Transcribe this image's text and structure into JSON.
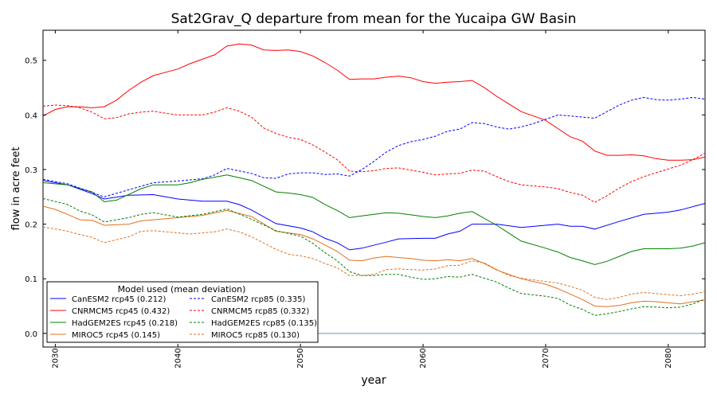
{
  "chart_data": {
    "type": "line",
    "title": "Sat2Grav_Q departure from mean for the Yucaipa GW Basin",
    "xlabel": "year",
    "ylabel": "flow in acre feet",
    "xlim": [
      2029,
      2083
    ],
    "ylim": [
      -0.025,
      0.555
    ],
    "xticks": [
      2030,
      2040,
      2050,
      2060,
      2070,
      2080
    ],
    "yticks": [
      0.0,
      0.1,
      0.2,
      0.3,
      0.4,
      0.5
    ],
    "ytick_labels": [
      "0.0",
      "0.1",
      "0.2",
      "0.3",
      "0.4",
      "0.5"
    ],
    "zero_line": {
      "y": 0,
      "color": "#5f9ea0"
    },
    "grid": false,
    "legend": {
      "title": "Model used (mean deviation)",
      "placement": "lower-left",
      "columns": 2
    },
    "series": [
      {
        "name": "CanESM2 rcp45 (0.212)",
        "color": "#0000ff",
        "style": "solid",
        "x": [
          2029,
          2031,
          2033,
          2034,
          2036,
          2038,
          2040,
          2042,
          2044,
          2045,
          2046,
          2048,
          2050,
          2051,
          2052,
          2053,
          2054,
          2055,
          2057,
          2058,
          2060,
          2061,
          2062,
          2063,
          2064,
          2066,
          2068,
          2070,
          2071,
          2072,
          2073,
          2074,
          2076,
          2078,
          2080,
          2081,
          2083
        ],
        "values": [
          0.28,
          0.272,
          0.256,
          0.246,
          0.253,
          0.254,
          0.246,
          0.242,
          0.242,
          0.236,
          0.226,
          0.201,
          0.193,
          0.186,
          0.174,
          0.166,
          0.153,
          0.156,
          0.167,
          0.173,
          0.174,
          0.174,
          0.182,
          0.187,
          0.2,
          0.2,
          0.194,
          0.198,
          0.2,
          0.196,
          0.196,
          0.191,
          0.205,
          0.218,
          0.222,
          0.226,
          0.238
        ]
      },
      {
        "name": "CNRMCM5 rcp45 (0.432)",
        "color": "#ff0000",
        "style": "solid",
        "x": [
          2029,
          2030,
          2031,
          2032,
          2033,
          2034,
          2035,
          2036,
          2037,
          2038,
          2039,
          2040,
          2041,
          2042,
          2043,
          2044,
          2045,
          2046,
          2047,
          2048,
          2049,
          2050,
          2051,
          2052,
          2053,
          2054,
          2055,
          2056,
          2057,
          2058,
          2059,
          2060,
          2061,
          2062,
          2063,
          2064,
          2065,
          2066,
          2068,
          2070,
          2071,
          2072,
          2073,
          2074,
          2075,
          2076,
          2077,
          2078,
          2079,
          2080,
          2081,
          2082,
          2083
        ],
        "values": [
          0.398,
          0.41,
          0.415,
          0.415,
          0.413,
          0.415,
          0.427,
          0.445,
          0.46,
          0.472,
          0.478,
          0.484,
          0.494,
          0.502,
          0.51,
          0.526,
          0.53,
          0.528,
          0.519,
          0.518,
          0.519,
          0.516,
          0.508,
          0.496,
          0.482,
          0.465,
          0.466,
          0.466,
          0.469,
          0.471,
          0.468,
          0.461,
          0.458,
          0.46,
          0.461,
          0.463,
          0.45,
          0.434,
          0.406,
          0.39,
          0.375,
          0.36,
          0.352,
          0.334,
          0.326,
          0.326,
          0.327,
          0.325,
          0.32,
          0.317,
          0.317,
          0.318,
          0.323
        ]
      },
      {
        "name": "HadGEM2ES rcp45 (0.218)",
        "color": "#008000",
        "style": "solid",
        "x": [
          2029,
          2031,
          2033,
          2034,
          2035,
          2037,
          2038,
          2040,
          2041,
          2042,
          2043,
          2044,
          2046,
          2048,
          2049,
          2050,
          2051,
          2052,
          2053,
          2054,
          2055,
          2056,
          2057,
          2058,
          2059,
          2060,
          2061,
          2062,
          2063,
          2064,
          2066,
          2068,
          2070,
          2071,
          2072,
          2073,
          2074,
          2075,
          2076,
          2077,
          2078,
          2079,
          2080,
          2081,
          2082,
          2083
        ],
        "values": [
          0.276,
          0.272,
          0.259,
          0.241,
          0.244,
          0.265,
          0.272,
          0.272,
          0.276,
          0.282,
          0.286,
          0.29,
          0.28,
          0.259,
          0.257,
          0.254,
          0.249,
          0.236,
          0.225,
          0.212,
          0.215,
          0.218,
          0.221,
          0.22,
          0.217,
          0.214,
          0.212,
          0.215,
          0.22,
          0.223,
          0.198,
          0.169,
          0.156,
          0.149,
          0.139,
          0.133,
          0.126,
          0.132,
          0.141,
          0.15,
          0.155,
          0.155,
          0.155,
          0.156,
          0.16,
          0.166
        ]
      },
      {
        "name": "MIROC5 rcp45 (0.145)",
        "color": "#e07020",
        "style": "solid",
        "x": [
          2029,
          2030,
          2031,
          2032,
          2033,
          2034,
          2035,
          2036,
          2037,
          2038,
          2040,
          2042,
          2044,
          2046,
          2048,
          2050,
          2051,
          2052,
          2053,
          2054,
          2055,
          2056,
          2057,
          2058,
          2059,
          2060,
          2061,
          2062,
          2063,
          2064,
          2065,
          2066,
          2068,
          2070,
          2071,
          2072,
          2073,
          2074,
          2075,
          2076,
          2077,
          2078,
          2079,
          2080,
          2081,
          2082,
          2083
        ],
        "values": [
          0.233,
          0.227,
          0.218,
          0.208,
          0.207,
          0.198,
          0.199,
          0.2,
          0.206,
          0.208,
          0.212,
          0.216,
          0.225,
          0.214,
          0.187,
          0.181,
          0.173,
          0.162,
          0.15,
          0.134,
          0.133,
          0.138,
          0.141,
          0.139,
          0.137,
          0.134,
          0.133,
          0.135,
          0.133,
          0.137,
          0.128,
          0.116,
          0.1,
          0.09,
          0.082,
          0.072,
          0.062,
          0.05,
          0.049,
          0.051,
          0.056,
          0.059,
          0.058,
          0.056,
          0.054,
          0.058,
          0.061
        ]
      },
      {
        "name": "CanESM2 rcp85 (0.335)",
        "color": "#0000ff",
        "style": "dashed",
        "x": [
          2029,
          2031,
          2033,
          2034,
          2036,
          2038,
          2040,
          2042,
          2043,
          2044,
          2046,
          2047,
          2048,
          2049,
          2050,
          2051,
          2052,
          2053,
          2054,
          2055,
          2056,
          2057,
          2058,
          2059,
          2060,
          2061,
          2062,
          2063,
          2064,
          2065,
          2066,
          2067,
          2068,
          2069,
          2070,
          2071,
          2072,
          2073,
          2074,
          2075,
          2076,
          2077,
          2078,
          2079,
          2080,
          2081,
          2082,
          2083
        ],
        "values": [
          0.282,
          0.274,
          0.258,
          0.25,
          0.263,
          0.276,
          0.279,
          0.283,
          0.29,
          0.302,
          0.293,
          0.285,
          0.284,
          0.292,
          0.294,
          0.294,
          0.291,
          0.292,
          0.288,
          0.3,
          0.315,
          0.332,
          0.344,
          0.351,
          0.355,
          0.361,
          0.37,
          0.374,
          0.386,
          0.384,
          0.378,
          0.374,
          0.378,
          0.384,
          0.392,
          0.4,
          0.398,
          0.396,
          0.394,
          0.406,
          0.418,
          0.427,
          0.432,
          0.428,
          0.427,
          0.429,
          0.432,
          0.429
        ]
      },
      {
        "name": "CNRMCM5 rcp85 (0.332)",
        "color": "#ff0000",
        "style": "dashed",
        "x": [
          2029,
          2030,
          2031,
          2032,
          2033,
          2034,
          2035,
          2036,
          2037,
          2038,
          2039,
          2040,
          2041,
          2042,
          2043,
          2044,
          2045,
          2046,
          2047,
          2048,
          2049,
          2050,
          2051,
          2052,
          2053,
          2054,
          2055,
          2056,
          2057,
          2058,
          2059,
          2060,
          2061,
          2062,
          2063,
          2064,
          2065,
          2066,
          2067,
          2068,
          2069,
          2070,
          2071,
          2072,
          2073,
          2074,
          2075,
          2076,
          2077,
          2078,
          2079,
          2080,
          2081,
          2082,
          2083
        ],
        "values": [
          0.416,
          0.418,
          0.417,
          0.413,
          0.405,
          0.393,
          0.395,
          0.402,
          0.405,
          0.407,
          0.403,
          0.4,
          0.4,
          0.4,
          0.405,
          0.413,
          0.407,
          0.396,
          0.376,
          0.366,
          0.359,
          0.355,
          0.345,
          0.332,
          0.318,
          0.297,
          0.296,
          0.298,
          0.302,
          0.303,
          0.299,
          0.295,
          0.29,
          0.292,
          0.293,
          0.299,
          0.297,
          0.287,
          0.278,
          0.272,
          0.27,
          0.268,
          0.265,
          0.258,
          0.253,
          0.24,
          0.252,
          0.266,
          0.278,
          0.287,
          0.294,
          0.301,
          0.308,
          0.318,
          0.33
        ]
      },
      {
        "name": "HadGEM2ES rcp85 (0.135)",
        "color": "#008000",
        "style": "dashed",
        "x": [
          2029,
          2031,
          2032,
          2033,
          2034,
          2035,
          2036,
          2037,
          2038,
          2040,
          2042,
          2044,
          2046,
          2048,
          2050,
          2051,
          2052,
          2053,
          2054,
          2055,
          2056,
          2057,
          2058,
          2059,
          2060,
          2061,
          2062,
          2063,
          2064,
          2065,
          2066,
          2067,
          2068,
          2070,
          2071,
          2072,
          2073,
          2074,
          2075,
          2076,
          2077,
          2078,
          2079,
          2080,
          2081,
          2082,
          2083
        ],
        "values": [
          0.247,
          0.236,
          0.224,
          0.217,
          0.204,
          0.208,
          0.212,
          0.218,
          0.221,
          0.213,
          0.218,
          0.228,
          0.209,
          0.188,
          0.178,
          0.165,
          0.148,
          0.133,
          0.113,
          0.106,
          0.106,
          0.108,
          0.108,
          0.103,
          0.099,
          0.1,
          0.104,
          0.103,
          0.108,
          0.101,
          0.094,
          0.083,
          0.073,
          0.068,
          0.064,
          0.052,
          0.044,
          0.033,
          0.036,
          0.04,
          0.045,
          0.049,
          0.048,
          0.047,
          0.048,
          0.054,
          0.063
        ]
      },
      {
        "name": "MIROC5 rcp85 (0.130)",
        "color": "#e07020",
        "style": "dashed",
        "x": [
          2029,
          2031,
          2032,
          2033,
          2034,
          2036,
          2037,
          2038,
          2040,
          2041,
          2042,
          2043,
          2044,
          2045,
          2046,
          2048,
          2049,
          2050,
          2051,
          2052,
          2053,
          2054,
          2055,
          2056,
          2057,
          2058,
          2059,
          2060,
          2061,
          2062,
          2063,
          2064,
          2065,
          2066,
          2067,
          2068,
          2070,
          2071,
          2072,
          2073,
          2074,
          2075,
          2076,
          2077,
          2078,
          2079,
          2080,
          2081,
          2082,
          2083
        ],
        "values": [
          0.195,
          0.187,
          0.181,
          0.176,
          0.166,
          0.177,
          0.187,
          0.188,
          0.184,
          0.182,
          0.184,
          0.186,
          0.191,
          0.186,
          0.177,
          0.154,
          0.145,
          0.142,
          0.137,
          0.128,
          0.12,
          0.106,
          0.106,
          0.108,
          0.117,
          0.118,
          0.117,
          0.116,
          0.118,
          0.124,
          0.125,
          0.133,
          0.129,
          0.117,
          0.106,
          0.101,
          0.095,
          0.092,
          0.086,
          0.079,
          0.066,
          0.062,
          0.066,
          0.072,
          0.075,
          0.073,
          0.071,
          0.069,
          0.072,
          0.076
        ]
      }
    ]
  }
}
